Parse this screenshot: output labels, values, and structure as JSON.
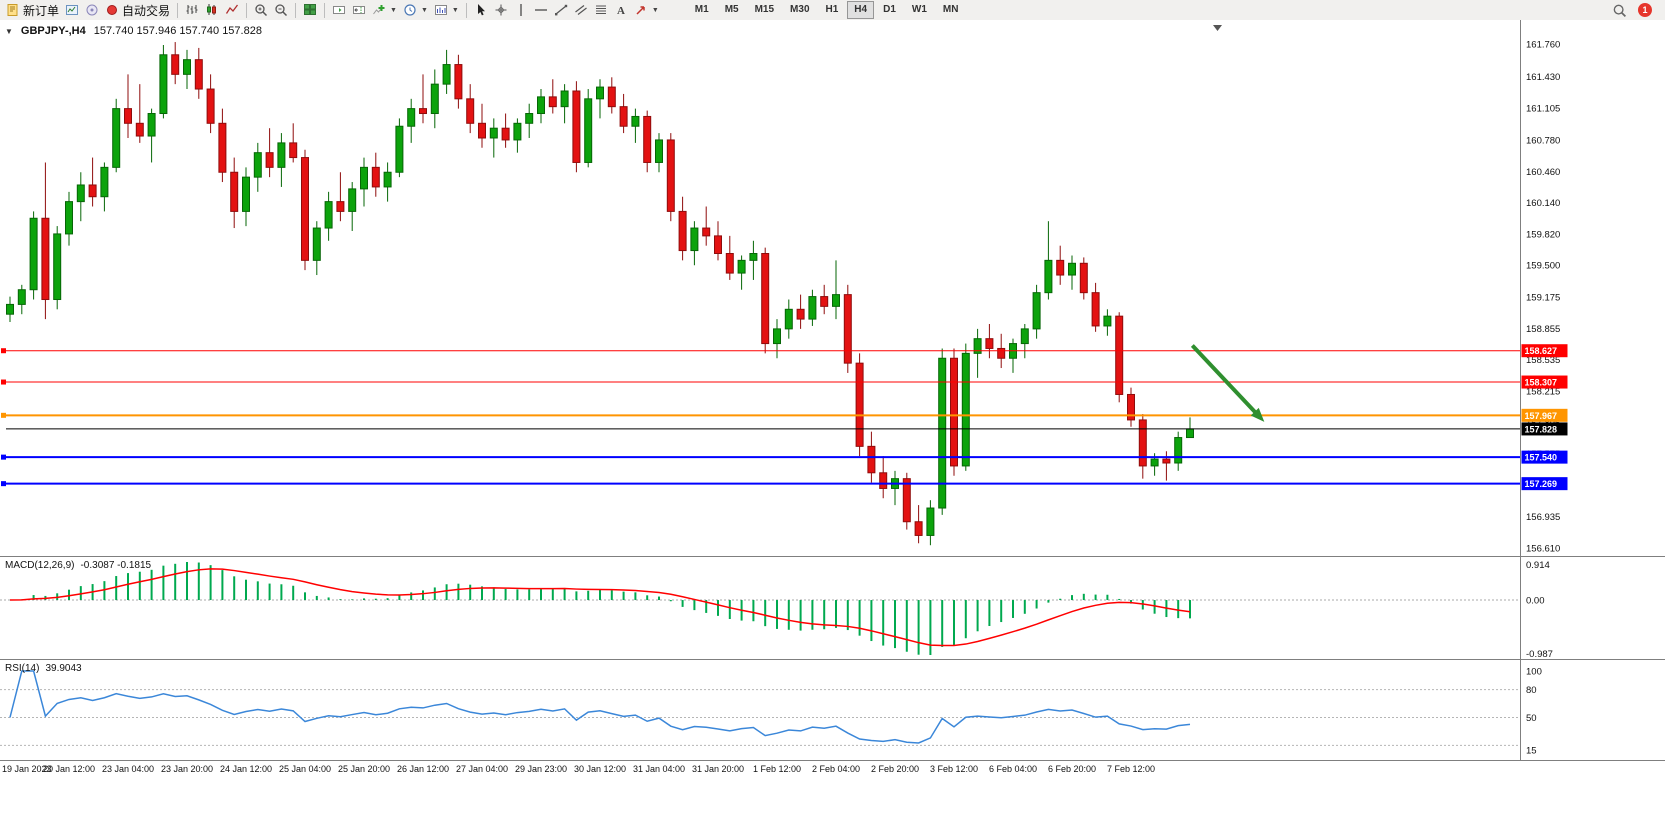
{
  "toolbar": {
    "new_order_label": "新订单",
    "auto_trading_label": "自动交易",
    "timeframes": [
      "M1",
      "M5",
      "M15",
      "M30",
      "H1",
      "H4",
      "D1",
      "W1",
      "MN"
    ],
    "active_timeframe": "H4",
    "notification_count": "1"
  },
  "chart_data": {
    "type": "candlestick",
    "symbol_period": "GBPJPY-,H4",
    "ohlc_text": "157.740 157.946 157.740 157.828",
    "ohlc_display": {
      "open": "157.740",
      "high": "157.946",
      "low": "157.740",
      "close": "157.828"
    },
    "price_axis_ticks": [
      "161.760",
      "161.430",
      "161.105",
      "160.780",
      "160.460",
      "160.140",
      "159.820",
      "159.500",
      "159.175",
      "158.855",
      "158.535",
      "158.215",
      "157.895",
      "157.575",
      "157.255",
      "156.935",
      "156.610"
    ],
    "time_labels": [
      "19 Jan 2023",
      "20 Jan 12:00",
      "23 Jan 04:00",
      "23 Jan 20:00",
      "24 Jan 12:00",
      "25 Jan 04:00",
      "25 Jan 20:00",
      "26 Jan 12:00",
      "27 Jan 04:00",
      "29 Jan 23:00",
      "30 Jan 12:00",
      "31 Jan 04:00",
      "31 Jan 20:00",
      "1 Feb 12:00",
      "2 Feb 04:00",
      "2 Feb 20:00",
      "3 Feb 12:00",
      "6 Feb 04:00",
      "6 Feb 20:00",
      "7 Feb 12:00"
    ],
    "candles": [
      [
        159.0,
        159.18,
        158.92,
        159.1
      ],
      [
        159.1,
        159.3,
        159.0,
        159.25
      ],
      [
        159.25,
        160.05,
        159.15,
        159.98
      ],
      [
        159.98,
        160.55,
        158.95,
        159.15
      ],
      [
        159.15,
        159.9,
        159.05,
        159.82
      ],
      [
        159.82,
        160.25,
        159.7,
        160.15
      ],
      [
        160.15,
        160.45,
        159.95,
        160.32
      ],
      [
        160.32,
        160.6,
        160.1,
        160.2
      ],
      [
        160.2,
        160.55,
        160.05,
        160.5
      ],
      [
        160.5,
        161.2,
        160.45,
        161.1
      ],
      [
        161.1,
        161.45,
        160.8,
        160.95
      ],
      [
        160.95,
        161.35,
        160.75,
        160.82
      ],
      [
        160.82,
        161.1,
        160.55,
        161.05
      ],
      [
        161.05,
        161.75,
        161.0,
        161.65
      ],
      [
        161.65,
        161.78,
        161.35,
        161.45
      ],
      [
        161.45,
        161.7,
        161.3,
        161.6
      ],
      [
        161.6,
        161.72,
        161.2,
        161.3
      ],
      [
        161.3,
        161.45,
        160.85,
        160.95
      ],
      [
        160.95,
        161.1,
        160.35,
        160.45
      ],
      [
        160.45,
        160.6,
        159.88,
        160.05
      ],
      [
        160.05,
        160.5,
        159.9,
        160.4
      ],
      [
        160.4,
        160.75,
        160.25,
        160.65
      ],
      [
        160.65,
        160.9,
        160.4,
        160.5
      ],
      [
        160.5,
        160.85,
        160.3,
        160.75
      ],
      [
        160.75,
        160.95,
        160.55,
        160.6
      ],
      [
        160.6,
        160.68,
        159.45,
        159.55
      ],
      [
        159.55,
        159.95,
        159.4,
        159.88
      ],
      [
        159.88,
        160.25,
        159.75,
        160.15
      ],
      [
        160.15,
        160.45,
        159.95,
        160.05
      ],
      [
        160.05,
        160.35,
        159.85,
        160.28
      ],
      [
        160.28,
        160.6,
        160.1,
        160.5
      ],
      [
        160.5,
        160.65,
        160.2,
        160.3
      ],
      [
        160.3,
        160.55,
        160.15,
        160.45
      ],
      [
        160.45,
        161.0,
        160.4,
        160.92
      ],
      [
        160.92,
        161.2,
        160.75,
        161.1
      ],
      [
        161.1,
        161.45,
        160.95,
        161.05
      ],
      [
        161.05,
        161.5,
        160.9,
        161.35
      ],
      [
        161.35,
        161.7,
        161.25,
        161.55
      ],
      [
        161.55,
        161.65,
        161.1,
        161.2
      ],
      [
        161.2,
        161.35,
        160.85,
        160.95
      ],
      [
        160.95,
        161.15,
        160.7,
        160.8
      ],
      [
        160.8,
        161.0,
        160.6,
        160.9
      ],
      [
        160.9,
        161.05,
        160.7,
        160.78
      ],
      [
        160.78,
        161.0,
        160.65,
        160.95
      ],
      [
        160.95,
        161.15,
        160.8,
        161.05
      ],
      [
        161.05,
        161.3,
        160.95,
        161.22
      ],
      [
        161.22,
        161.4,
        161.05,
        161.12
      ],
      [
        161.12,
        161.35,
        160.95,
        161.28
      ],
      [
        161.28,
        161.38,
        160.45,
        160.55
      ],
      [
        160.55,
        161.3,
        160.5,
        161.2
      ],
      [
        161.2,
        161.4,
        161.0,
        161.32
      ],
      [
        161.32,
        161.42,
        161.05,
        161.12
      ],
      [
        161.12,
        161.25,
        160.85,
        160.92
      ],
      [
        160.92,
        161.1,
        160.75,
        161.02
      ],
      [
        161.02,
        161.08,
        160.45,
        160.55
      ],
      [
        160.55,
        160.85,
        160.45,
        160.78
      ],
      [
        160.78,
        160.85,
        159.95,
        160.05
      ],
      [
        160.05,
        160.2,
        159.55,
        159.65
      ],
      [
        159.65,
        159.95,
        159.5,
        159.88
      ],
      [
        159.88,
        160.1,
        159.7,
        159.8
      ],
      [
        159.8,
        159.95,
        159.55,
        159.62
      ],
      [
        159.62,
        159.8,
        159.35,
        159.42
      ],
      [
        159.42,
        159.6,
        159.25,
        159.55
      ],
      [
        159.55,
        159.75,
        159.35,
        159.62
      ],
      [
        159.62,
        159.68,
        158.6,
        158.7
      ],
      [
        158.7,
        158.95,
        158.55,
        158.85
      ],
      [
        158.85,
        159.15,
        158.75,
        159.05
      ],
      [
        159.05,
        159.2,
        158.85,
        158.95
      ],
      [
        158.95,
        159.25,
        158.88,
        159.18
      ],
      [
        159.18,
        159.3,
        159.0,
        159.08
      ],
      [
        159.08,
        159.55,
        158.95,
        159.2
      ],
      [
        159.2,
        159.3,
        158.4,
        158.5
      ],
      [
        158.5,
        158.6,
        157.55,
        157.65
      ],
      [
        157.65,
        157.8,
        157.28,
        157.38
      ],
      [
        157.38,
        157.55,
        157.12,
        157.22
      ],
      [
        157.22,
        157.4,
        157.05,
        157.32
      ],
      [
        157.32,
        157.38,
        156.8,
        156.88
      ],
      [
        156.88,
        157.05,
        156.66,
        156.74
      ],
      [
        156.74,
        157.1,
        156.64,
        157.02
      ],
      [
        157.02,
        158.65,
        156.95,
        158.55
      ],
      [
        158.55,
        158.65,
        157.35,
        157.45
      ],
      [
        157.45,
        158.7,
        157.4,
        158.6
      ],
      [
        158.6,
        158.85,
        158.35,
        158.75
      ],
      [
        158.75,
        158.9,
        158.55,
        158.65
      ],
      [
        158.65,
        158.8,
        158.45,
        158.55
      ],
      [
        158.55,
        158.75,
        158.4,
        158.7
      ],
      [
        158.7,
        158.9,
        158.55,
        158.85
      ],
      [
        158.85,
        159.3,
        158.75,
        159.22
      ],
      [
        159.22,
        159.95,
        159.15,
        159.55
      ],
      [
        159.55,
        159.7,
        159.3,
        159.4
      ],
      [
        159.4,
        159.6,
        159.25,
        159.52
      ],
      [
        159.52,
        159.58,
        159.15,
        159.22
      ],
      [
        159.22,
        159.32,
        158.82,
        158.88
      ],
      [
        158.88,
        159.05,
        158.78,
        158.98
      ],
      [
        158.98,
        159.02,
        158.1,
        158.18
      ],
      [
        158.18,
        158.25,
        157.85,
        157.92
      ],
      [
        157.92,
        157.98,
        157.32,
        157.45
      ],
      [
        157.45,
        157.58,
        157.35,
        157.52
      ],
      [
        157.52,
        157.6,
        157.3,
        157.48
      ],
      [
        157.48,
        157.8,
        157.4,
        157.74
      ],
      [
        157.74,
        157.946,
        157.74,
        157.828
      ]
    ],
    "hlines": [
      {
        "price": 158.627,
        "label": "158.627",
        "color": "#FF0000",
        "width": 1,
        "marker": true
      },
      {
        "price": 158.307,
        "label": "158.307",
        "color": "#FF0000",
        "width": 1,
        "marker": true
      },
      {
        "price": 157.967,
        "label": "157.967",
        "color": "#FF9500",
        "width": 2,
        "marker": true
      },
      {
        "price": 157.828,
        "label": "157.828",
        "color": "#000000",
        "width": 1,
        "marker": false
      },
      {
        "price": 157.54,
        "label": "157.540",
        "color": "#0000FF",
        "width": 2,
        "marker": true
      },
      {
        "price": 157.269,
        "label": "157.269",
        "color": "#0000FF",
        "width": 2,
        "marker": true
      }
    ],
    "arrow": {
      "bar_from": 100.2,
      "price_from": 158.68,
      "bar_to": 106.3,
      "price_to": 157.9,
      "color": "#2F8F2F",
      "width": 4
    },
    "macd": {
      "label": "MACD(12,26,9)",
      "values": "-0.3087 -0.1815",
      "axis": [
        "0.914",
        "0.00",
        "-0.987"
      ],
      "fast": 12,
      "slow": 26,
      "signal_period": 9,
      "histogram_color": "#00A94F",
      "signal_color": "#FF0000"
    },
    "rsi": {
      "label": "RSI(14)",
      "value": "39.9043",
      "period": 14,
      "axis": [
        "100",
        "80",
        "50",
        "15"
      ],
      "levels": [
        80,
        50,
        20
      ],
      "line_color": "#3B87D9"
    },
    "colors": {
      "up": "#0CA30C",
      "up_border": "#066606",
      "down": "#E31212",
      "down_border": "#8F0C0C",
      "background": "#FFFFFF",
      "axis_line": "#7F7F7F"
    }
  }
}
